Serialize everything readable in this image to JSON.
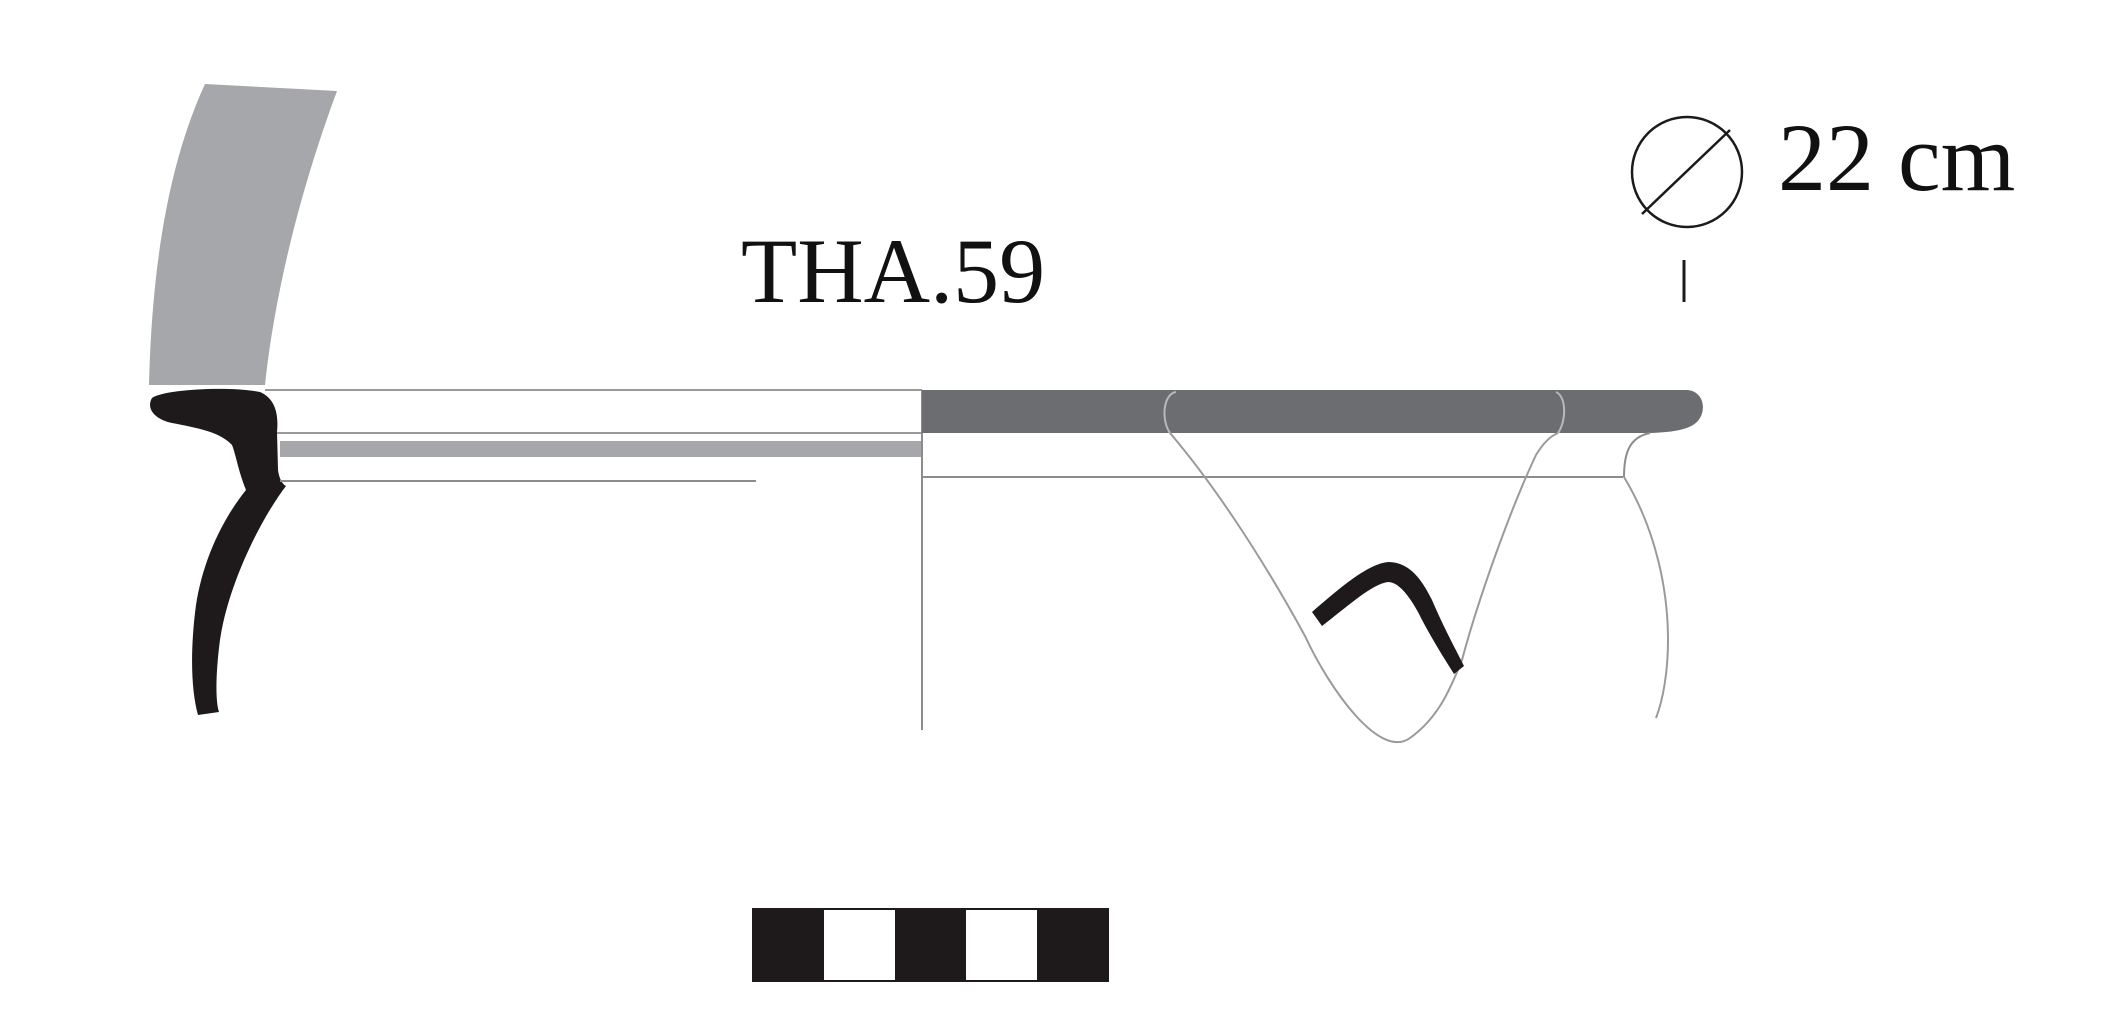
{
  "drawing": {
    "catalogue_number": "THA.59",
    "diameter_label": "22 cm",
    "colors": {
      "section_fill": "#1e1a1b",
      "rim_band": "#6c6d71",
      "light_grey": "#a6a7aa",
      "outline": "#9a9a9a",
      "profile_line": "#8c8c8c",
      "scale_dark": "#1e1a1b",
      "text": "#111111"
    },
    "icons": {
      "diameter_symbol": "diameter-icon",
      "scale_bar": "scale-bar"
    },
    "scale_bar": {
      "segments": [
        "dark",
        "light",
        "dark",
        "light",
        "dark"
      ]
    }
  }
}
